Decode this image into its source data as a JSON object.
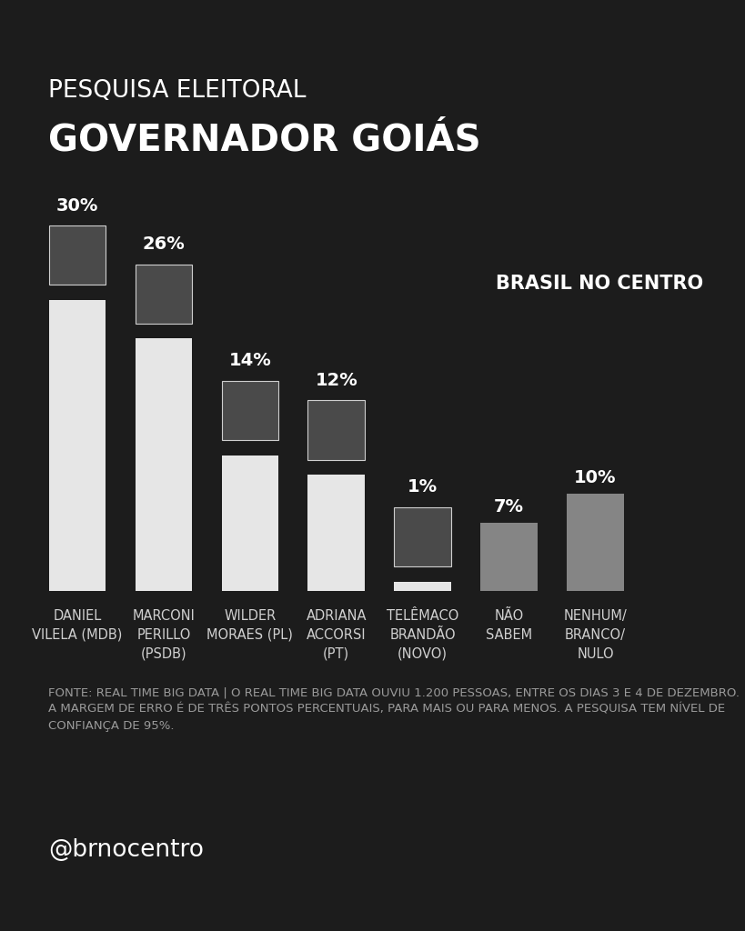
{
  "chart_data": {
    "type": "bar",
    "subtitle": "PESQUISA ELEITORAL",
    "title": "GOVERNADOR GOIÁS",
    "categories": [
      "DANIEL\nVILELA (MDB)",
      "MARCONI\nPERILLO\n(PSDB)",
      "WILDER\nMORAES (PL)",
      "ADRIANA\nACCORSI\n(PT)",
      "TELÊMACO\nBRANDÃO\n(NOVO)",
      "NÃO\nSABEM",
      "NENHUM/\nBRANCO/\nNULO"
    ],
    "values": [
      30,
      26,
      14,
      12,
      1,
      7,
      10
    ],
    "value_labels": [
      "30%",
      "26%",
      "14%",
      "12%",
      "1%",
      "7%",
      "10%"
    ],
    "colors": [
      "#e6e6e6",
      "#e6e6e6",
      "#e6e6e6",
      "#e6e6e6",
      "#e6e6e6",
      "#858585",
      "#858585"
    ],
    "data_labels": true,
    "tick_labels": "x",
    "ylim": [
      0,
      30
    ],
    "annotations": [
      "BRASIL NO CENTRO",
      "FONTE: REAL TIME BIG DATA | O REAL TIME BIG DATA OUVIU 1.200 PESSOAS, ENTRE OS DIAS 3 E 4 DE DEZEMBRO. A MARGEM DE ERRO É DE TRÊS PONTOS PERCENTUAIS, PARA MAIS OU PARA MENOS. A PESQUISA TEM NÍVEL DE CONFIANÇA DE 95%.",
      "@brnocentro"
    ]
  }
}
